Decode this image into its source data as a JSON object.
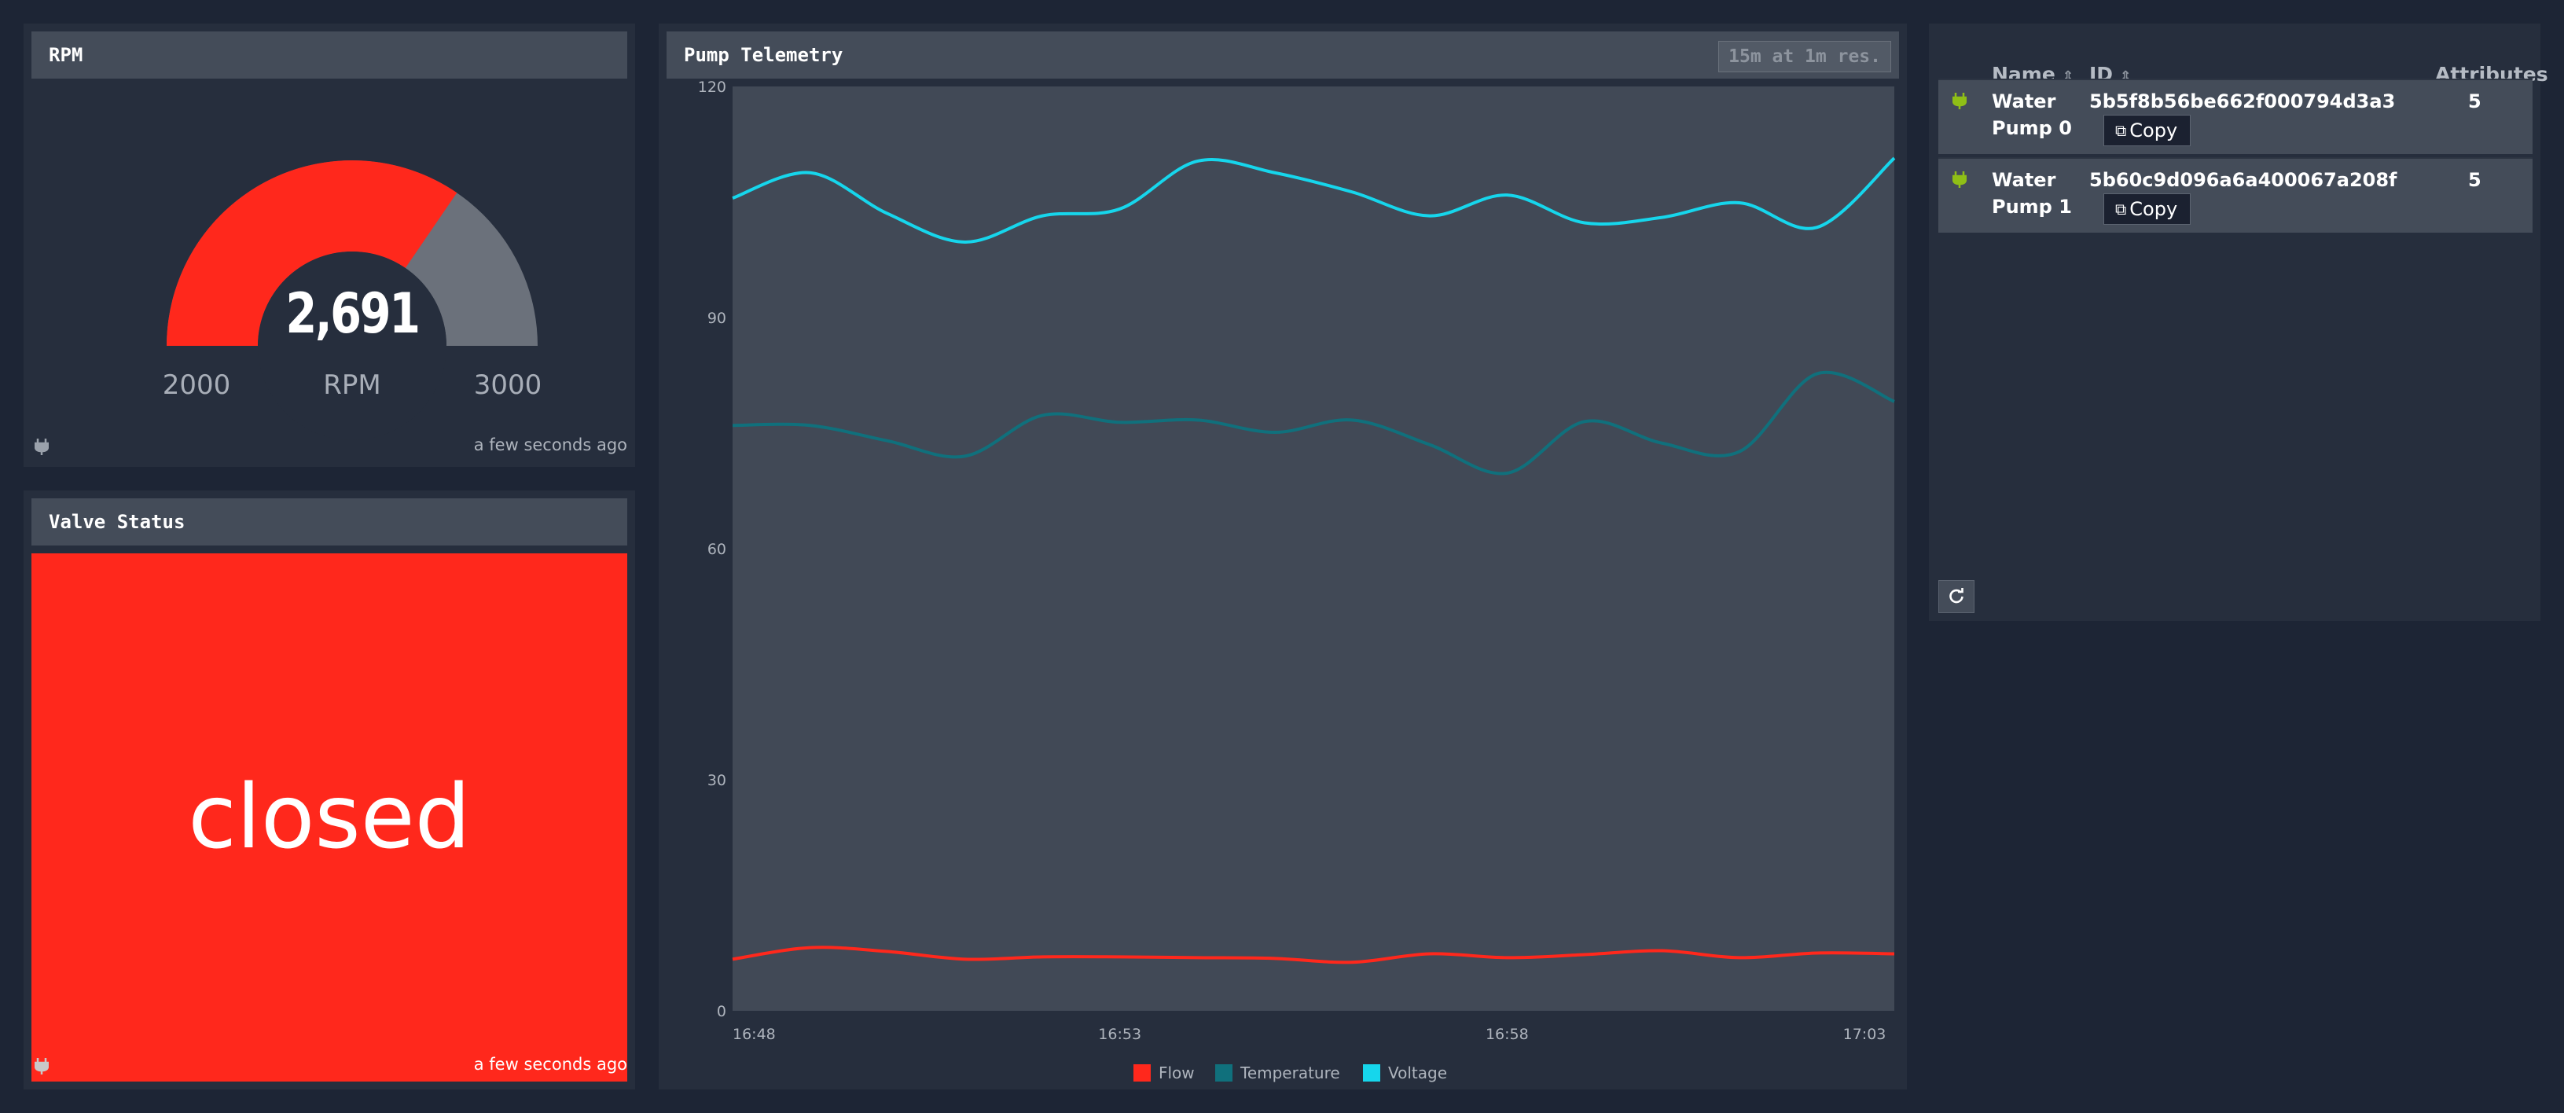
{
  "rpm_widget": {
    "title": "RPM",
    "value": "2,691",
    "unit": "RPM",
    "min_label": "2000",
    "max_label": "3000",
    "fill_fraction": 0.691,
    "fill_color": "#ff281c",
    "track_color": "#6b717b",
    "updated": "a few seconds ago"
  },
  "valve_widget": {
    "title": "Valve Status",
    "status": "closed",
    "status_color": "#ff281c",
    "updated": "a few seconds ago"
  },
  "telemetry": {
    "title": "Pump Telemetry",
    "resolution_label": "15m at 1m res."
  },
  "chart_data": {
    "type": "line",
    "ylim": [
      0,
      120
    ],
    "y_ticks": [
      "0",
      "30",
      "60",
      "90",
      "120"
    ],
    "x_ticks": [
      "16:48",
      "16:53",
      "16:58",
      "17:03"
    ],
    "x_tick_minutes": [
      0,
      5,
      10,
      15
    ],
    "legend_position": "bottom",
    "grid": false,
    "series": [
      {
        "name": "Flow",
        "color": "#ff281c",
        "x_minutes": [
          0,
          1,
          2,
          3,
          4,
          5,
          6,
          7,
          8,
          9,
          10,
          11,
          12,
          13,
          14,
          15
        ],
        "values": [
          6.7,
          8.2,
          7.7,
          6.7,
          7.0,
          7.0,
          6.9,
          6.8,
          6.3,
          7.4,
          6.9,
          7.3,
          7.8,
          6.9,
          7.5,
          7.4
        ]
      },
      {
        "name": "Temperature",
        "color": "#10707c",
        "x_minutes": [
          0,
          1,
          2,
          3,
          4,
          5,
          6,
          7,
          8,
          9,
          10,
          11,
          12,
          13,
          14,
          15
        ],
        "values": [
          76.0,
          76.0,
          74.0,
          72.0,
          77.3,
          76.4,
          76.7,
          75.1,
          76.7,
          73.5,
          69.8,
          76.5,
          73.7,
          72.6,
          82.7,
          79.1
        ]
      },
      {
        "name": "Voltage",
        "color": "#16d6ec",
        "x_minutes": [
          0,
          1,
          2,
          3,
          4,
          5,
          6,
          7,
          8,
          9,
          10,
          11,
          12,
          13,
          14,
          15
        ],
        "values": [
          105.5,
          108.8,
          103.5,
          99.8,
          103.2,
          104.1,
          110.3,
          108.8,
          106.3,
          103.2,
          105.9,
          102.3,
          103.0,
          104.9,
          101.7,
          110.7
        ]
      }
    ]
  },
  "device_table": {
    "columns": [
      "Name",
      "ID",
      "Attributes"
    ],
    "rows": [
      {
        "name_line1": "Water",
        "name_line2": "Pump 0",
        "id": "5b5f8b56be662f000794d3a3",
        "copy_label": "Copy",
        "attributes": "5"
      },
      {
        "name_line1": "Water",
        "name_line2": "Pump 1",
        "id": "5b60c9d096a6a400067a208f",
        "copy_label": "Copy",
        "attributes": "5"
      }
    ],
    "icon_color": "#8fbf16"
  }
}
